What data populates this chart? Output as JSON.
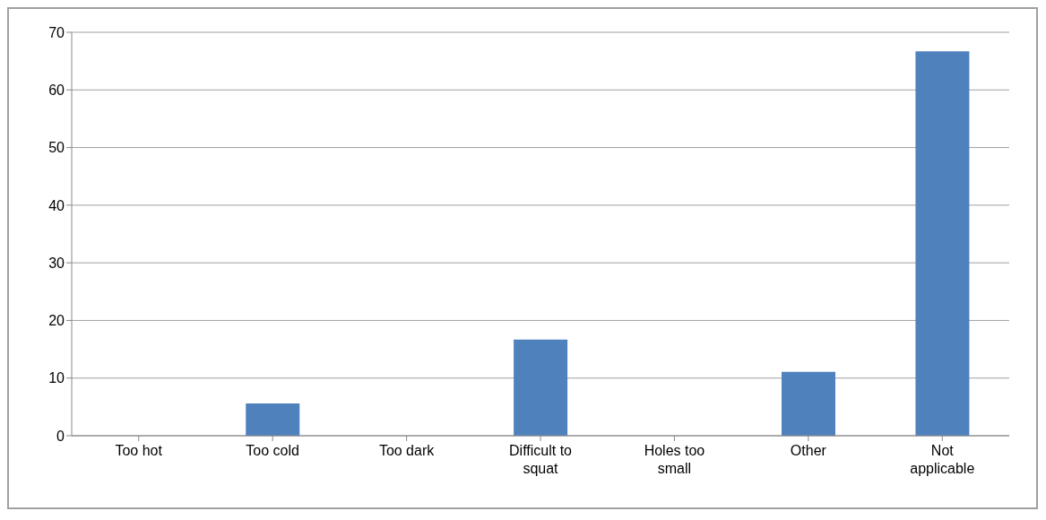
{
  "chart_data": {
    "type": "bar",
    "categories": [
      "Too hot",
      "Too cold",
      "Too dark",
      "Difficult to squat",
      "Holes too small",
      "Other",
      "Not applicable"
    ],
    "values": [
      0,
      5.6,
      0,
      16.7,
      0,
      11.1,
      66.7
    ],
    "color": "#4f81bd",
    "ylim": [
      0,
      70
    ],
    "yticks": [
      0,
      10,
      20,
      30,
      40,
      50,
      60,
      70
    ],
    "grid": "y"
  }
}
